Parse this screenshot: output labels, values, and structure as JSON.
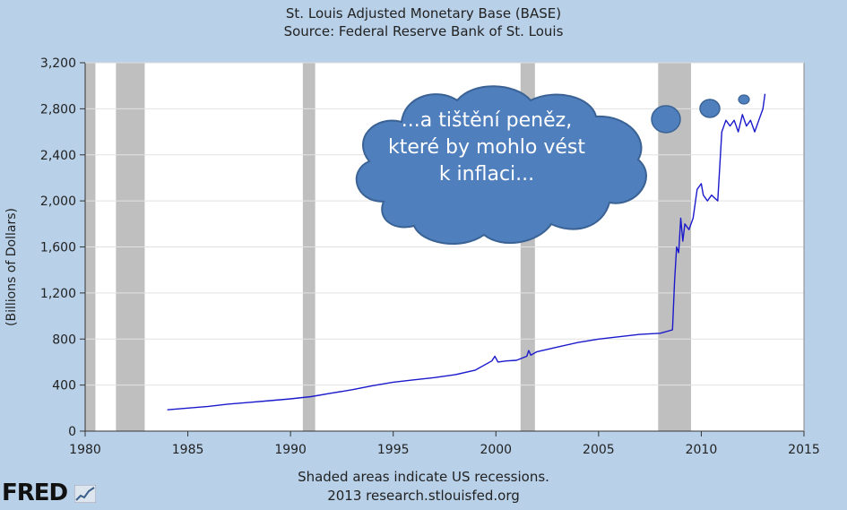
{
  "chart_data": {
    "type": "line",
    "title": "St. Louis Adjusted Monetary Base (BASE)",
    "subtitle": "Source: Federal Reserve Bank of St. Louis",
    "xlabel": "",
    "ylabel": "(Billions of Dollars)",
    "xlim": [
      1980,
      2015
    ],
    "ylim": [
      0,
      3200
    ],
    "x_ticks": [
      "1980",
      "1985",
      "1990",
      "1995",
      "2000",
      "2005",
      "2010",
      "2015"
    ],
    "y_ticks": [
      "0",
      "400",
      "800",
      "1,200",
      "1,600",
      "2,000",
      "2,400",
      "2,800",
      "3,200"
    ],
    "grid": "horizontal",
    "recessions": [
      [
        1980.0,
        1980.5
      ],
      [
        1981.5,
        1982.9
      ],
      [
        1990.6,
        1991.2
      ],
      [
        2001.2,
        2001.9
      ],
      [
        2007.9,
        2009.5
      ]
    ],
    "series": [
      {
        "color": "#1a1acc",
        "x": [
          1984.0,
          1985.0,
          1986.0,
          1987.0,
          1988.0,
          1989.0,
          1990.0,
          1991.0,
          1992.0,
          1993.0,
          1994.0,
          1995.0,
          1996.0,
          1997.0,
          1998.0,
          1999.0,
          1999.8,
          1999.95,
          2000.1,
          2000.5,
          2001.0,
          2001.5,
          2001.6,
          2001.7,
          2002.0,
          2003.0,
          2004.0,
          2005.0,
          2006.0,
          2007.0,
          2008.0,
          2008.6,
          2008.7,
          2008.8,
          2008.9,
          2009.0,
          2009.1,
          2009.2,
          2009.4,
          2009.6,
          2009.8,
          2010.0,
          2010.1,
          2010.3,
          2010.5,
          2010.8,
          2011.0,
          2011.2,
          2011.4,
          2011.6,
          2011.8,
          2012.0,
          2012.2,
          2012.4,
          2012.6,
          2012.8,
          2013.0,
          2013.1
        ],
        "y": [
          185,
          200,
          215,
          235,
          250,
          265,
          280,
          300,
          330,
          360,
          395,
          425,
          445,
          465,
          490,
          530,
          610,
          650,
          600,
          610,
          615,
          650,
          700,
          660,
          690,
          730,
          770,
          800,
          820,
          840,
          850,
          880,
          1300,
          1600,
          1550,
          1850,
          1650,
          1800,
          1750,
          1850,
          2100,
          2150,
          2050,
          2000,
          2050,
          2000,
          2600,
          2700,
          2650,
          2700,
          2600,
          2750,
          2650,
          2700,
          2600,
          2700,
          2800,
          2930
        ]
      }
    ],
    "annotation": "...a tištění peněz, které by mohlo vést k inflaci...",
    "footer1": "Shaded areas indicate US recessions.",
    "footer2": "2013 research.stlouisfed.org",
    "logo": "FRED"
  }
}
